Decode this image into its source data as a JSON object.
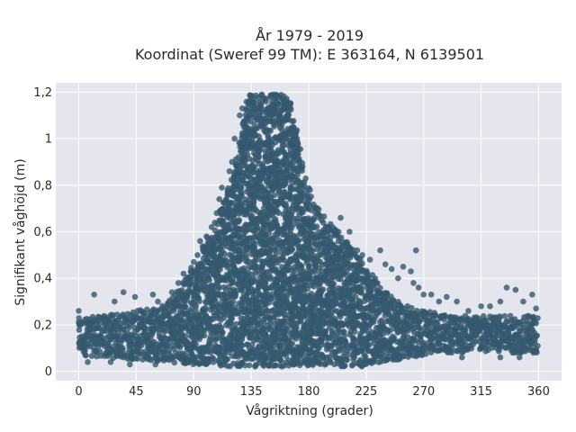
{
  "chart_data": {
    "type": "scatter",
    "title": "År 1979 - 2019",
    "subtitle": "Koordinat (Sweref 99 TM): E 363164, N 6139501",
    "xlabel": "Vågriktning (grader)",
    "ylabel": "Signifikant våghöjd (m)",
    "xlim": [
      -18,
      378
    ],
    "ylim": [
      -0.04,
      1.24
    ],
    "x_ticks": [
      0,
      45,
      90,
      135,
      180,
      225,
      270,
      315,
      360
    ],
    "x_tick_labels": [
      "0",
      "45",
      "90",
      "135",
      "180",
      "225",
      "270",
      "315",
      "360"
    ],
    "y_ticks": [
      0,
      0.2,
      0.4,
      0.6,
      0.8,
      1.0,
      1.2
    ],
    "y_tick_labels": [
      "0",
      "0,2",
      "0,4",
      "0,6",
      "0,8",
      "1",
      "1,2"
    ],
    "grid": true,
    "point_color": "#34596e",
    "series": [
      {
        "envelope": {
          "x": [
            0,
            20,
            45,
            70,
            90,
            105,
            115,
            125,
            132,
            140,
            160,
            165,
            170,
            175,
            180,
            185,
            190,
            200,
            210,
            220,
            230,
            240,
            250,
            260,
            270,
            290,
            315,
            340,
            360
          ],
          "y_min": [
            0.07,
            0.06,
            0.05,
            0.04,
            0.03,
            0.03,
            0.02,
            0.02,
            0.02,
            0.02,
            0.02,
            0.02,
            0.02,
            0.02,
            0.02,
            0.02,
            0.02,
            0.02,
            0.02,
            0.02,
            0.03,
            0.04,
            0.05,
            0.06,
            0.07,
            0.08,
            0.08,
            0.08,
            0.08
          ],
          "y_max": [
            0.23,
            0.24,
            0.26,
            0.3,
            0.46,
            0.62,
            0.75,
            0.95,
            1.19,
            1.19,
            1.19,
            1.17,
            1.05,
            0.9,
            0.8,
            0.72,
            0.68,
            0.62,
            0.56,
            0.48,
            0.42,
            0.34,
            0.3,
            0.28,
            0.26,
            0.25,
            0.24,
            0.24,
            0.24
          ]
        },
        "outliers": [
          [
            0,
            0.26
          ],
          [
            12,
            0.33
          ],
          [
            28,
            0.3
          ],
          [
            35,
            0.34
          ],
          [
            44,
            0.32
          ],
          [
            58,
            0.33
          ],
          [
            62,
            0.3
          ],
          [
            73,
            0.34
          ],
          [
            78,
            0.38
          ],
          [
            82,
            0.42
          ],
          [
            86,
            0.4
          ],
          [
            90,
            0.47
          ],
          [
            93,
            0.5
          ],
          [
            95,
            0.56
          ],
          [
            100,
            0.58
          ],
          [
            104,
            0.62
          ],
          [
            108,
            0.68
          ],
          [
            110,
            0.74
          ],
          [
            112,
            0.79
          ],
          [
            118,
            0.86
          ],
          [
            120,
            0.9
          ],
          [
            122,
            1.0
          ],
          [
            126,
            1.1
          ],
          [
            128,
            1.13
          ],
          [
            205,
            0.66
          ],
          [
            212,
            0.6
          ],
          [
            218,
            0.52
          ],
          [
            222,
            0.5
          ],
          [
            228,
            0.48
          ],
          [
            236,
            0.52
          ],
          [
            240,
            0.46
          ],
          [
            245,
            0.44
          ],
          [
            250,
            0.4
          ],
          [
            254,
            0.45
          ],
          [
            260,
            0.43
          ],
          [
            262,
            0.38
          ],
          [
            264,
            0.52
          ],
          [
            266,
            0.36
          ],
          [
            270,
            0.33
          ],
          [
            276,
            0.33
          ],
          [
            282,
            0.3
          ],
          [
            288,
            0.32
          ],
          [
            296,
            0.3
          ],
          [
            305,
            0.26
          ],
          [
            315,
            0.28
          ],
          [
            322,
            0.28
          ],
          [
            330,
            0.3
          ],
          [
            335,
            0.36
          ],
          [
            342,
            0.35
          ],
          [
            348,
            0.3
          ],
          [
            355,
            0.33
          ],
          [
            358,
            0.27
          ],
          [
            7,
            0.04
          ],
          [
            25,
            0.04
          ],
          [
            40,
            0.03
          ],
          [
            60,
            0.03
          ],
          [
            300,
            0.06
          ],
          [
            330,
            0.06
          ],
          [
            345,
            0.06
          ],
          [
            232,
            0.06
          ],
          [
            250,
            0.05
          ]
        ]
      }
    ]
  }
}
